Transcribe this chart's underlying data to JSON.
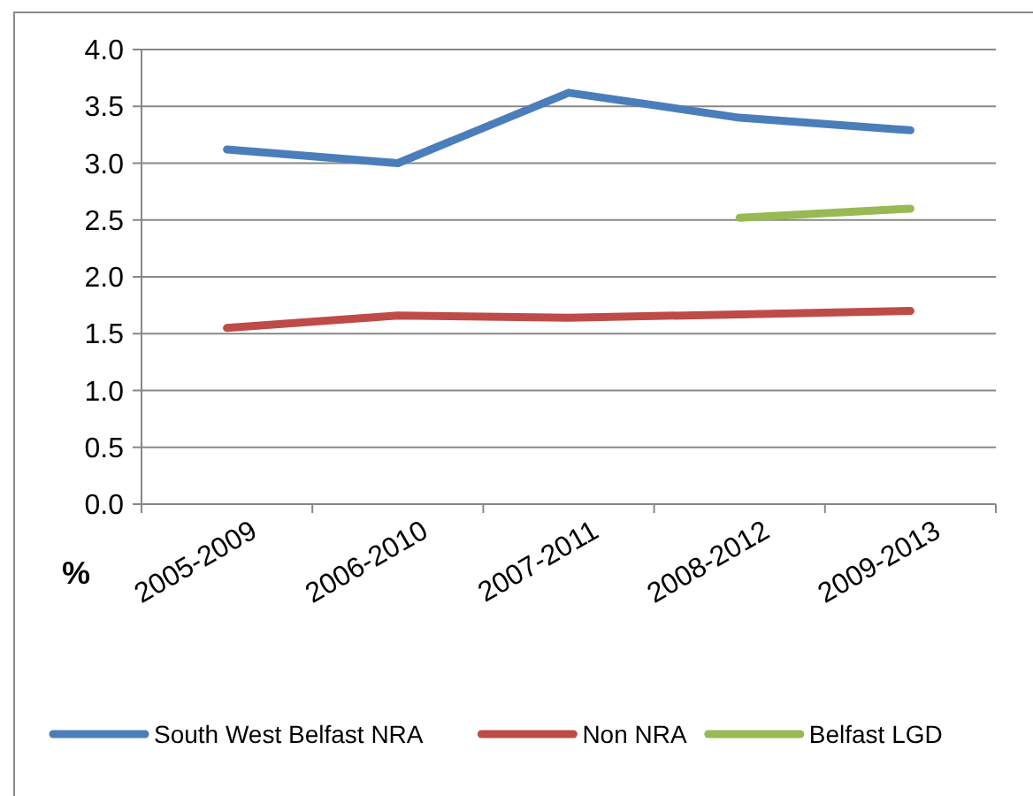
{
  "chart_data": {
    "type": "line",
    "ylabel": "%",
    "categories": [
      "2005-2009",
      "2006-2010",
      "2007-2011",
      "2008-2012",
      "2009-2013"
    ],
    "series": [
      {
        "name": "South West Belfast NRA",
        "color": "#4a7ebb",
        "values": [
          3.12,
          3.0,
          3.62,
          3.4,
          3.29
        ]
      },
      {
        "name": "Non NRA",
        "color": "#be4b48",
        "values": [
          1.55,
          1.66,
          1.64,
          1.67,
          1.7
        ]
      },
      {
        "name": "Belfast LGD",
        "color": "#98b954",
        "values": [
          null,
          null,
          null,
          2.52,
          2.6
        ]
      }
    ],
    "ylim": [
      0,
      4
    ],
    "yticks": [
      {
        "value": 0,
        "label": "0.0"
      },
      {
        "value": 0.5,
        "label": "0.5"
      },
      {
        "value": 1,
        "label": "1.0"
      },
      {
        "value": 1.5,
        "label": "1.5"
      },
      {
        "value": 2,
        "label": "2.0"
      },
      {
        "value": 2.5,
        "label": "2.5"
      },
      {
        "value": 3,
        "label": "3.0"
      },
      {
        "value": 3.5,
        "label": "3.5"
      },
      {
        "value": 4,
        "label": "4.0"
      }
    ],
    "grid": "y",
    "legend": "bottom",
    "line_style": "solid",
    "marker": "none"
  }
}
